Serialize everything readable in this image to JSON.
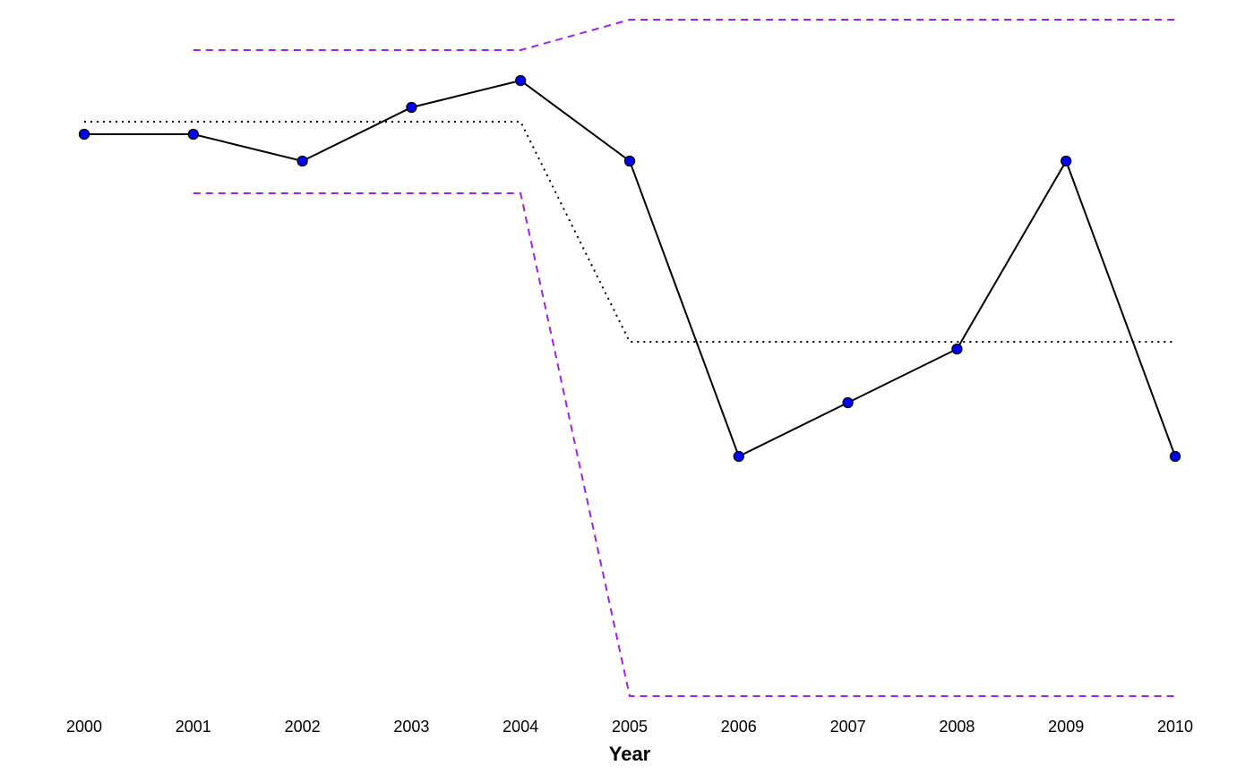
{
  "chart_data": {
    "type": "line",
    "title": "",
    "xlabel": "Year",
    "ylabel": "",
    "x": [
      2000,
      2001,
      2002,
      2003,
      2004,
      2005,
      2006,
      2007,
      2008,
      2009,
      2010
    ],
    "tick_labels": [
      "2000",
      "2001",
      "2002",
      "2003",
      "2004",
      "2005",
      "2006",
      "2007",
      "2008",
      "2009",
      "2010"
    ],
    "xlim": [
      2000,
      2010
    ],
    "ylim": [
      -4.25,
      0.0
    ],
    "y_axis_shown": false,
    "grid": false,
    "legend": "none",
    "series": [
      {
        "role": "observed",
        "style": "solid",
        "markers": "circle",
        "color": "#000000",
        "marker_fill": "#0000FF",
        "x": [
          2000,
          2001,
          2002,
          2003,
          2004,
          2005,
          2006,
          2007,
          2008,
          2009,
          2010
        ],
        "values": [
          -0.75,
          -0.75,
          -0.9,
          -0.6,
          -0.45,
          -0.9,
          -2.55,
          -2.25,
          -1.95,
          -0.9,
          -2.55
        ]
      },
      {
        "role": "fitted",
        "style": "dotted",
        "color": "#000000",
        "x": [
          2000,
          2004,
          2005,
          2010
        ],
        "values": [
          -0.68,
          -0.68,
          -1.91,
          -1.91
        ]
      },
      {
        "role": "upper",
        "style": "dashed",
        "color": "#A020F0",
        "x": [
          2001,
          2004,
          2005,
          2010
        ],
        "values": [
          -0.28,
          -0.28,
          -0.11,
          -0.11
        ]
      },
      {
        "role": "lower",
        "style": "dashed",
        "color": "#A020F0",
        "x": [
          2001,
          2004,
          2005,
          2010
        ],
        "values": [
          -1.08,
          -1.08,
          -3.89,
          -3.89
        ]
      }
    ]
  }
}
